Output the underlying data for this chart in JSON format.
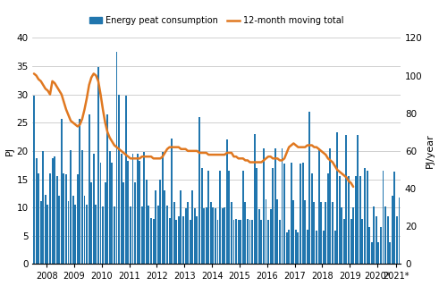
{
  "ylabel_left": "PJ",
  "ylabel_right": "PJ/year",
  "ylim_left": [
    0,
    40
  ],
  "ylim_right": [
    0,
    120
  ],
  "yticks_left": [
    0,
    5,
    10,
    15,
    20,
    25,
    30,
    35,
    40
  ],
  "yticks_right": [
    0,
    20,
    40,
    60,
    80,
    100,
    120
  ],
  "bar_color": "#2176ae",
  "line_color": "#e07820",
  "x_labels": [
    "2008",
    "2009",
    "2010",
    "2011",
    "2012",
    "2013",
    "2014",
    "2015",
    "2016",
    "2017",
    "2018",
    "2019",
    "2020*",
    "2021*"
  ],
  "bar_values": [
    29.7,
    18.7,
    16.0,
    11.1,
    20.0,
    12.2,
    10.5,
    16.0,
    18.7,
    19.0,
    15.5,
    12.0,
    25.7,
    16.0,
    15.9,
    11.1,
    20.2,
    12.0,
    10.5,
    15.9,
    25.7,
    20.2,
    12.0,
    10.5,
    26.5,
    14.5,
    19.5,
    10.5,
    34.9,
    18.0,
    10.2,
    14.5,
    26.5,
    20.0,
    18.0,
    10.2,
    37.5,
    30.0,
    19.5,
    14.5,
    29.7,
    18.3,
    10.2,
    19.5,
    14.5,
    19.5,
    18.3,
    10.2,
    19.8,
    15.0,
    10.3,
    8.1,
    7.9,
    13.0,
    10.3,
    15.0,
    19.8,
    13.0,
    10.3,
    8.1,
    22.2,
    11.0,
    7.8,
    8.5,
    13.0,
    8.5,
    9.8,
    11.0,
    7.8,
    13.0,
    9.8,
    8.5,
    26.0,
    17.0,
    9.8,
    10.0,
    16.5,
    11.0,
    10.0,
    9.8,
    7.8,
    16.5,
    9.8,
    10.0,
    22.0,
    16.5,
    11.0,
    7.8,
    8.0,
    7.8,
    7.8,
    16.5,
    11.0,
    8.0,
    7.8,
    7.8,
    23.0,
    17.0,
    9.7,
    7.8,
    20.5,
    11.5,
    7.8,
    9.7,
    17.0,
    20.5,
    11.5,
    7.8,
    20.5,
    17.8,
    5.6,
    6.0,
    18.0,
    11.3,
    6.0,
    5.6,
    17.8,
    18.0,
    11.3,
    6.0,
    27.0,
    16.0,
    11.0,
    5.9,
    20.5,
    11.0,
    5.9,
    11.0,
    16.0,
    20.5,
    11.0,
    5.9,
    23.3,
    15.5,
    10.0,
    8.0,
    22.9,
    15.6,
    8.0,
    10.0,
    15.5,
    22.9,
    15.6,
    8.0,
    17.0,
    16.5,
    6.5,
    3.8,
    10.2,
    8.4,
    3.8,
    6.5,
    16.5,
    10.2,
    8.4,
    3.8,
    12.0,
    16.4,
    8.5,
    11.8
  ],
  "line_y": [
    101,
    100,
    98,
    97,
    95,
    93,
    92,
    90,
    97,
    96,
    94,
    92,
    90,
    86,
    82,
    79,
    76,
    75,
    74,
    73,
    74,
    77,
    82,
    88,
    95,
    99,
    101,
    100,
    97,
    90,
    82,
    75,
    70,
    67,
    65,
    63,
    62,
    61,
    60,
    59,
    58,
    57,
    56,
    56,
    56,
    56,
    56,
    57,
    57,
    57,
    57,
    57,
    56,
    56,
    56,
    56,
    57,
    59,
    61,
    62,
    62,
    62,
    62,
    62,
    61,
    61,
    61,
    60,
    60,
    60,
    60,
    60,
    59,
    59,
    59,
    59,
    58,
    58,
    58,
    58,
    58,
    58,
    58,
    58,
    59,
    59,
    59,
    57,
    57,
    56,
    56,
    56,
    55,
    55,
    54,
    54,
    54,
    54,
    54,
    54,
    55,
    56,
    57,
    57,
    56,
    56,
    56,
    55,
    55,
    56,
    59,
    62,
    63,
    64,
    63,
    62,
    62,
    62,
    62,
    63,
    63,
    63,
    62,
    62,
    61,
    60,
    59,
    58,
    56,
    55,
    54,
    52,
    50,
    49,
    48,
    47,
    46,
    44,
    43,
    41
  ],
  "legend_bar_label": "Energy peat consumption",
  "legend_line_label": "12-month moving total",
  "background_color": "#ffffff",
  "grid_color": "#bebebe"
}
